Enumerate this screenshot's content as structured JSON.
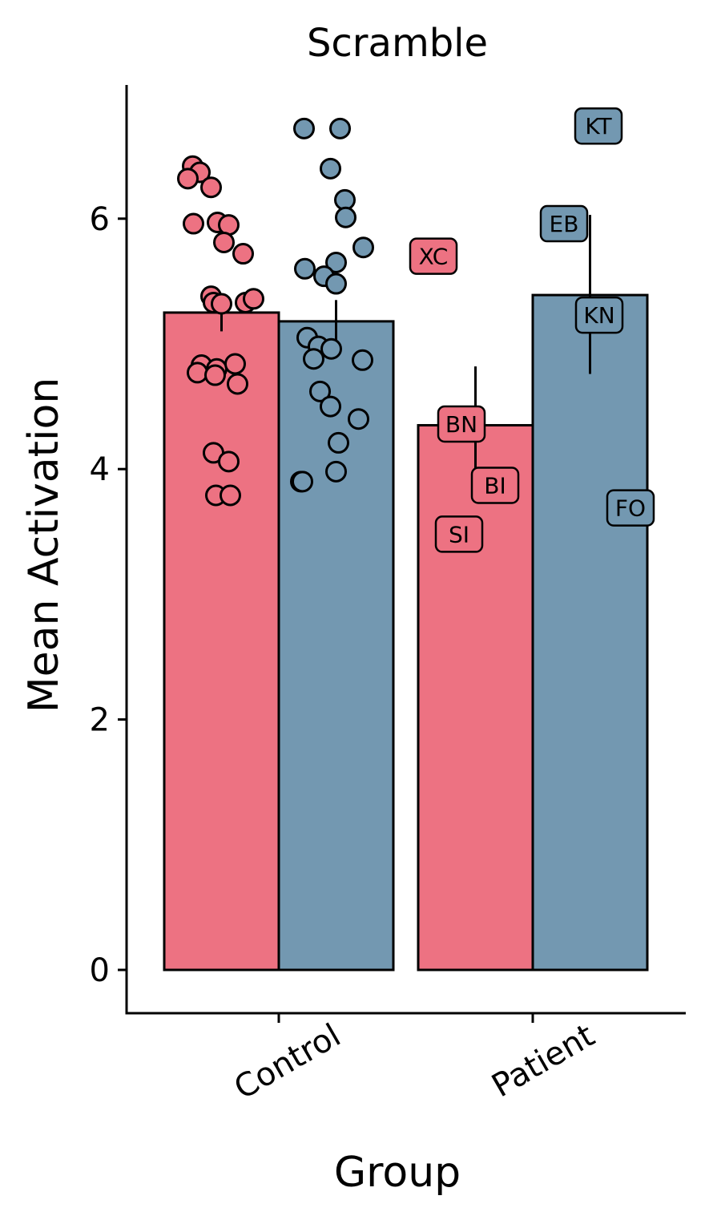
{
  "chart_data": {
    "type": "bar",
    "title": "Scramble",
    "xlabel": "Group",
    "ylabel": "Mean Activation",
    "categories": [
      "Control",
      "Patient"
    ],
    "yticks": [
      0,
      2,
      4,
      6
    ],
    "ylim": [
      -0.34,
      7.05
    ],
    "grid": false,
    "legend": "none",
    "colors": {
      "series_a": "#ED7282",
      "series_b": "#7398B1",
      "outline": "#000000"
    },
    "series": [
      {
        "values": [
          5.25,
          4.35
        ],
        "error": [
          [
            5.1,
            5.35
          ],
          [
            3.9,
            4.82
          ]
        ],
        "control_points": [
          6.42,
          6.37,
          6.32,
          6.25,
          5.96,
          5.97,
          5.95,
          5.81,
          5.72,
          5.38,
          5.33,
          5.32,
          5.33,
          5.36,
          4.83,
          4.8,
          4.84,
          4.77,
          4.75,
          4.68,
          4.13,
          4.06,
          3.79,
          3.79
        ],
        "patient_labels": [
          {
            "label": "XC",
            "value": 5.7
          },
          {
            "label": "BN",
            "value": 4.36
          },
          {
            "label": "BI",
            "value": 3.87
          },
          {
            "label": "SI",
            "value": 3.48
          }
        ]
      },
      {
        "values": [
          5.18,
          5.39
        ],
        "error": [
          [
            5.02,
            5.35
          ],
          [
            4.76,
            6.03
          ]
        ],
        "control_points": [
          6.72,
          6.72,
          6.4,
          6.15,
          6.01,
          5.77,
          5.65,
          5.6,
          5.54,
          5.48,
          5.05,
          4.98,
          4.96,
          4.87,
          4.88,
          4.62,
          4.5,
          4.4,
          4.21,
          3.98,
          3.9,
          3.9
        ],
        "patient_labels": [
          {
            "label": "KT",
            "value": 6.74
          },
          {
            "label": "EB",
            "value": 5.96
          },
          {
            "label": "KN",
            "value": 5.23
          },
          {
            "label": "FO",
            "value": 3.69
          }
        ]
      }
    ]
  }
}
